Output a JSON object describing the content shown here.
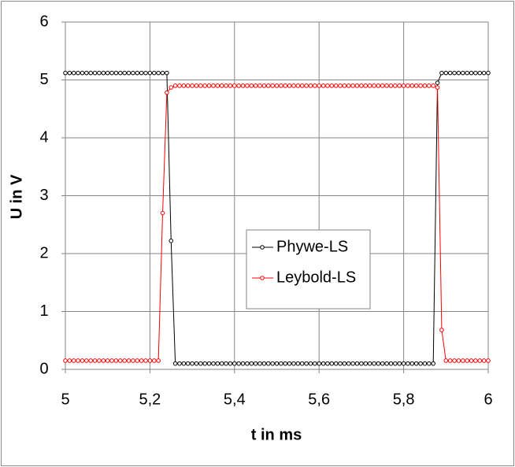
{
  "chart_data": {
    "type": "line",
    "x_label": "t in ms",
    "y_label": "U in V",
    "x": [
      5,
      5.01,
      5.02,
      5.03,
      5.04,
      5.05,
      5.06,
      5.07,
      5.08,
      5.09,
      5.1,
      5.11,
      5.12,
      5.13,
      5.14,
      5.15,
      5.16,
      5.17,
      5.18,
      5.19,
      5.2,
      5.21,
      5.22,
      5.23,
      5.24,
      5.25,
      5.26,
      5.27,
      5.28,
      5.29,
      5.3,
      5.31,
      5.32,
      5.33,
      5.34,
      5.35,
      5.36,
      5.37,
      5.38,
      5.39,
      5.4,
      5.41,
      5.42,
      5.43,
      5.44,
      5.45,
      5.46,
      5.47,
      5.48,
      5.49,
      5.5,
      5.51,
      5.52,
      5.53,
      5.54,
      5.55,
      5.56,
      5.57,
      5.58,
      5.59,
      5.6,
      5.61,
      5.62,
      5.63,
      5.64,
      5.65,
      5.66,
      5.67,
      5.68,
      5.69,
      5.7,
      5.71,
      5.72,
      5.73,
      5.74,
      5.75,
      5.76,
      5.77,
      5.78,
      5.79,
      5.8,
      5.81,
      5.82,
      5.83,
      5.84,
      5.85,
      5.86,
      5.87,
      5.88,
      5.89,
      5.9,
      5.91,
      5.92,
      5.93,
      5.94,
      5.95,
      5.96,
      5.97,
      5.98,
      5.99,
      6
    ],
    "series": [
      {
        "name": "Phywe-LS",
        "color": "#000000",
        "values": [
          5.12,
          5.12,
          5.12,
          5.12,
          5.12,
          5.12,
          5.12,
          5.12,
          5.12,
          5.12,
          5.12,
          5.12,
          5.12,
          5.12,
          5.12,
          5.12,
          5.12,
          5.12,
          5.12,
          5.12,
          5.12,
          5.12,
          5.12,
          5.12,
          5.12,
          2.22,
          0.1,
          0.1,
          0.1,
          0.1,
          0.1,
          0.1,
          0.1,
          0.1,
          0.1,
          0.1,
          0.1,
          0.1,
          0.1,
          0.1,
          0.1,
          0.1,
          0.1,
          0.1,
          0.1,
          0.1,
          0.1,
          0.1,
          0.1,
          0.1,
          0.1,
          0.1,
          0.1,
          0.1,
          0.1,
          0.1,
          0.1,
          0.1,
          0.1,
          0.1,
          0.1,
          0.1,
          0.1,
          0.1,
          0.1,
          0.1,
          0.1,
          0.1,
          0.1,
          0.1,
          0.1,
          0.1,
          0.1,
          0.1,
          0.1,
          0.1,
          0.1,
          0.1,
          0.1,
          0.1,
          0.1,
          0.1,
          0.1,
          0.1,
          0.1,
          0.1,
          0.1,
          0.1,
          4.95,
          5.12,
          5.12,
          5.12,
          5.12,
          5.12,
          5.12,
          5.12,
          5.12,
          5.12,
          5.12,
          5.12,
          5.12
        ]
      },
      {
        "name": "Leybold-LS",
        "color": "#ff0000",
        "values": [
          0.15,
          0.15,
          0.15,
          0.15,
          0.15,
          0.15,
          0.15,
          0.15,
          0.15,
          0.15,
          0.15,
          0.15,
          0.15,
          0.15,
          0.15,
          0.15,
          0.15,
          0.15,
          0.15,
          0.15,
          0.15,
          0.15,
          0.15,
          2.7,
          4.78,
          4.87,
          4.9,
          4.9,
          4.9,
          4.9,
          4.9,
          4.9,
          4.9,
          4.9,
          4.9,
          4.9,
          4.9,
          4.9,
          4.9,
          4.9,
          4.9,
          4.9,
          4.9,
          4.9,
          4.9,
          4.9,
          4.9,
          4.9,
          4.9,
          4.9,
          4.9,
          4.9,
          4.9,
          4.9,
          4.9,
          4.9,
          4.9,
          4.9,
          4.9,
          4.9,
          4.9,
          4.9,
          4.9,
          4.9,
          4.9,
          4.9,
          4.9,
          4.9,
          4.9,
          4.9,
          4.9,
          4.9,
          4.9,
          4.9,
          4.9,
          4.9,
          4.9,
          4.9,
          4.9,
          4.9,
          4.9,
          4.9,
          4.9,
          4.9,
          4.9,
          4.9,
          4.9,
          4.9,
          4.87,
          0.68,
          0.15,
          0.15,
          0.15,
          0.15,
          0.15,
          0.15,
          0.15,
          0.15,
          0.15,
          0.15,
          0.15
        ]
      }
    ],
    "xlim": [
      5,
      6
    ],
    "xticks": [
      5,
      {
        "value": 5.2,
        "label": "5,2"
      },
      {
        "value": 5.4,
        "label": "5,4"
      },
      {
        "value": 5.6,
        "label": "5,6"
      },
      {
        "value": 5.8,
        "label": "5,8"
      },
      6
    ],
    "ylim": [
      0,
      6
    ],
    "yticks": [
      0,
      1,
      2,
      3,
      4,
      5,
      6
    ],
    "grid": true,
    "legend": "center"
  }
}
